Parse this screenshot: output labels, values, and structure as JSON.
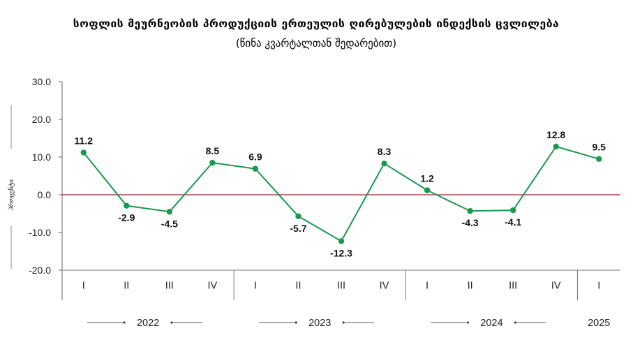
{
  "chart_data": {
    "type": "line",
    "title": "სოფლის მეურნეობის პროდუქციის ერთეულის ღირებულების ინდექსის ცვლილება",
    "subtitle": "(წინა  კვარტალთან შედარებით)",
    "ylabel": "პროცენტი",
    "xlabel": "",
    "ylim": [
      -20,
      30
    ],
    "yticks": [
      "30.0",
      "20.0",
      "10.0",
      "0.0",
      "-10.0",
      "-20.0"
    ],
    "ytick_values": [
      30,
      20,
      10,
      0,
      -10,
      -20
    ],
    "categories": [
      "I",
      "II",
      "III",
      "IV",
      "I",
      "II",
      "III",
      "IV",
      "I",
      "II",
      "III",
      "IV",
      "I"
    ],
    "years": [
      {
        "label": "2022",
        "count": 4
      },
      {
        "label": "2023",
        "count": 4
      },
      {
        "label": "2024",
        "count": 4
      },
      {
        "label": "2025",
        "count": 1
      }
    ],
    "series": [
      {
        "values": [
          11.2,
          -2.9,
          -4.5,
          8.5,
          6.9,
          -5.7,
          -12.3,
          8.3,
          1.2,
          -4.3,
          -4.1,
          12.8,
          9.5
        ],
        "labels": [
          "11.2",
          "-2.9",
          "-4.5",
          "8.5",
          "6.9",
          "-5.7",
          "-12.3",
          "8.3",
          "1.2",
          "-4.3",
          "-4.1",
          "12.8",
          "9.5"
        ],
        "color": "#1a9850"
      }
    ],
    "zero_line_color": "#a3232b",
    "grid": false,
    "legend": "none"
  }
}
